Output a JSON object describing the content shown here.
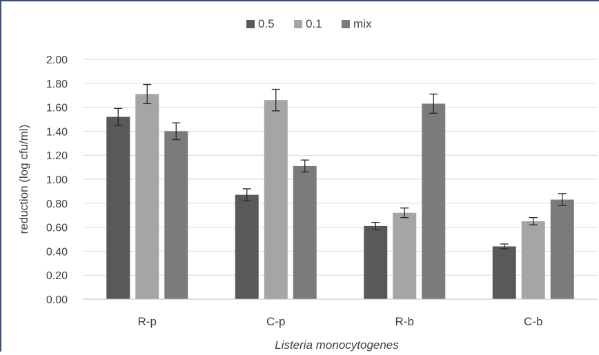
{
  "chart_data": {
    "type": "bar",
    "title": "",
    "xlabel": "Listeria monocytogenes",
    "ylabel": "reduction (log cfu/ml)",
    "categories": [
      "R-p",
      "C-p",
      "R-b",
      "C-b"
    ],
    "series": [
      {
        "name": "0.5",
        "color": "#595959",
        "values": [
          1.52,
          0.87,
          0.61,
          0.44
        ],
        "errors": [
          0.07,
          0.05,
          0.03,
          0.02
        ]
      },
      {
        "name": "0.1",
        "color": "#a5a5a5",
        "values": [
          1.71,
          1.66,
          0.72,
          0.65
        ],
        "errors": [
          0.08,
          0.09,
          0.04,
          0.03
        ]
      },
      {
        "name": "mix",
        "color": "#7b7b7b",
        "values": [
          1.4,
          1.11,
          1.63,
          0.83
        ],
        "errors": [
          0.07,
          0.05,
          0.08,
          0.05
        ]
      }
    ],
    "ylim": [
      0,
      2.0
    ],
    "yticks": [
      "0.00",
      "0.20",
      "0.40",
      "0.60",
      "0.80",
      "1.00",
      "1.20",
      "1.40",
      "1.60",
      "1.80",
      "2.00"
    ],
    "grid": true,
    "legend_position": "top-center"
  }
}
